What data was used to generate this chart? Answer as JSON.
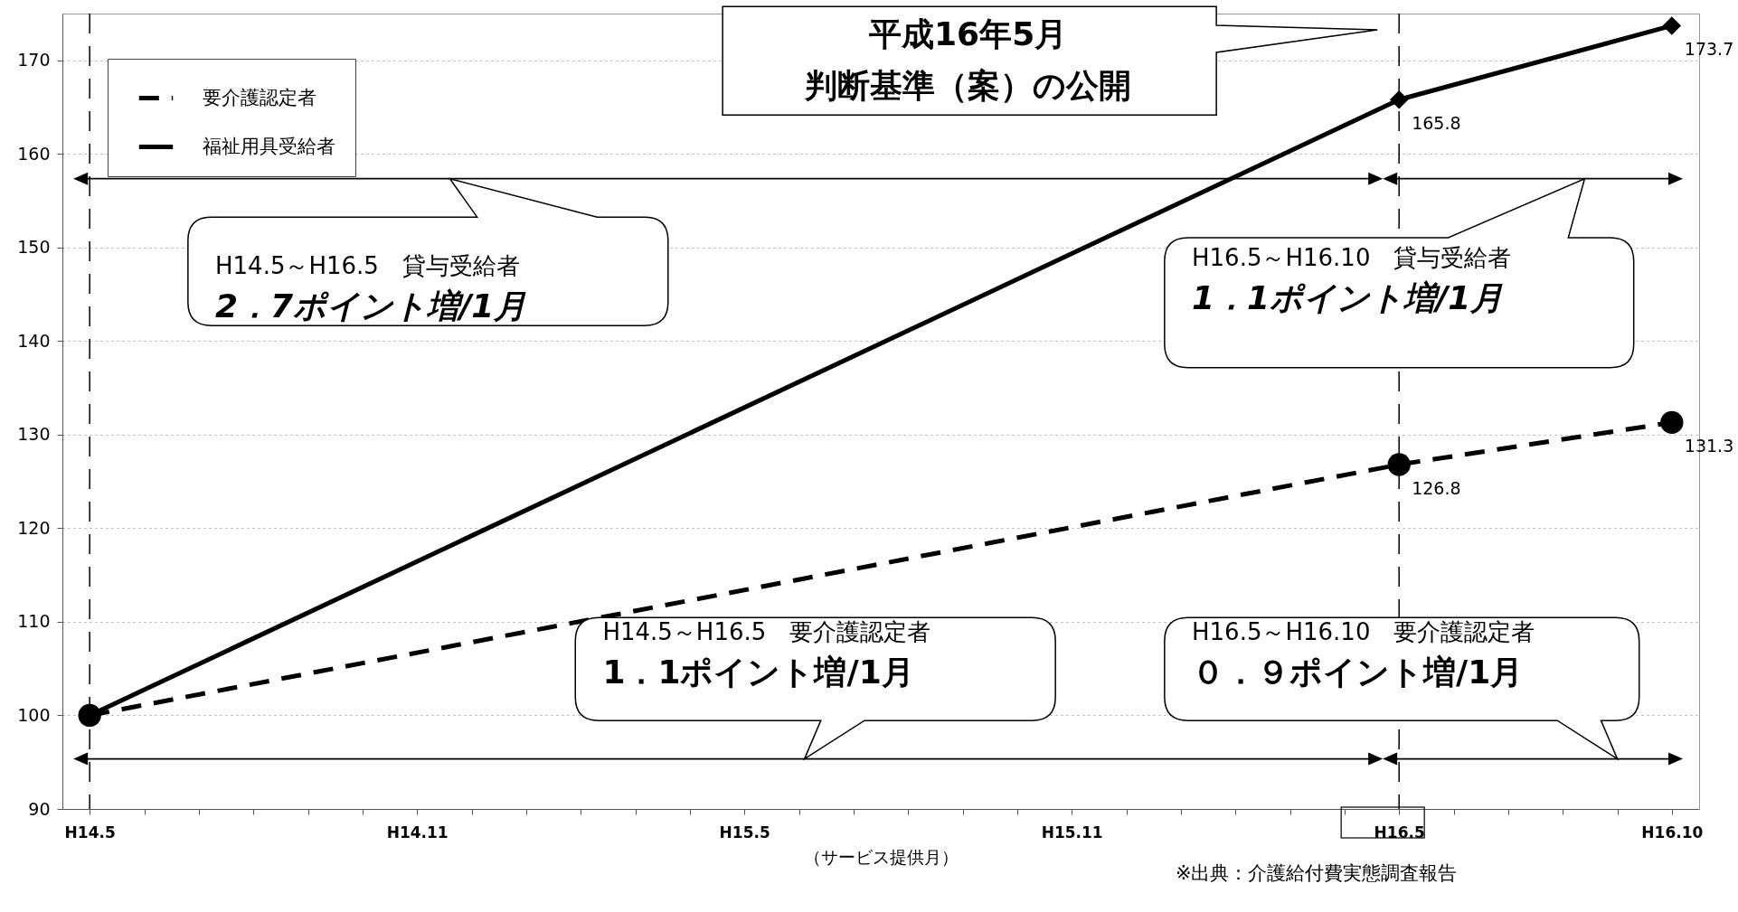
{
  "chart_data": {
    "type": "line",
    "xlabel": "（サービス提供月）",
    "categories": [
      "H14.5",
      null,
      null,
      null,
      null,
      null,
      "H14.11",
      null,
      null,
      null,
      null,
      null,
      "H15.5",
      null,
      null,
      null,
      null,
      null,
      "H15.11",
      null,
      null,
      null,
      null,
      null,
      "H16.5",
      null,
      null,
      null,
      null,
      "H16.10"
    ],
    "ylim": [
      90,
      175
    ],
    "yticks": [
      90,
      100,
      110,
      120,
      130,
      140,
      150,
      160,
      170
    ],
    "series": [
      {
        "name": "要介護認定者",
        "color": "#000000",
        "x": [
          "H14.5",
          "H16.5",
          "H16.10"
        ],
        "values": [
          100,
          126.8,
          131.3
        ],
        "value_labels": [
          null,
          "126.8",
          "131.3"
        ],
        "marker": "circle",
        "line_style": "dashed"
      },
      {
        "name": "福祉用具受給者",
        "color": "#000000",
        "x": [
          "H14.5",
          "H16.5",
          "H16.10"
        ],
        "values": [
          100,
          165.8,
          173.7
        ],
        "value_labels": [
          null,
          "165.8",
          "173.7"
        ],
        "marker": "diamond",
        "line_style": "solid"
      }
    ],
    "ref_lines": [
      {
        "axis": "x",
        "value": "H14.5",
        "color": "#000000",
        "line_style": "dashed"
      },
      {
        "axis": "x",
        "value": "H16.5",
        "color": "#000000",
        "line_style": "dashed"
      }
    ],
    "grid": "y",
    "legend": "top left",
    "annotations": [
      "平成16年5月",
      "判断基準（案）の公開",
      "H14.5～H16.5　貸与受給者",
      "2．7ポイント増/1月",
      "H16.5～H16.10　貸与受給者",
      "1．1ポイント増/1月",
      "H14.5～H16.5　要介護認定者",
      "1．1ポイント増/1月",
      "H16.5～H16.10　要介護認定者",
      "０．９ポイント増/1月",
      "※出典：介護給付費実態調査報告"
    ]
  }
}
